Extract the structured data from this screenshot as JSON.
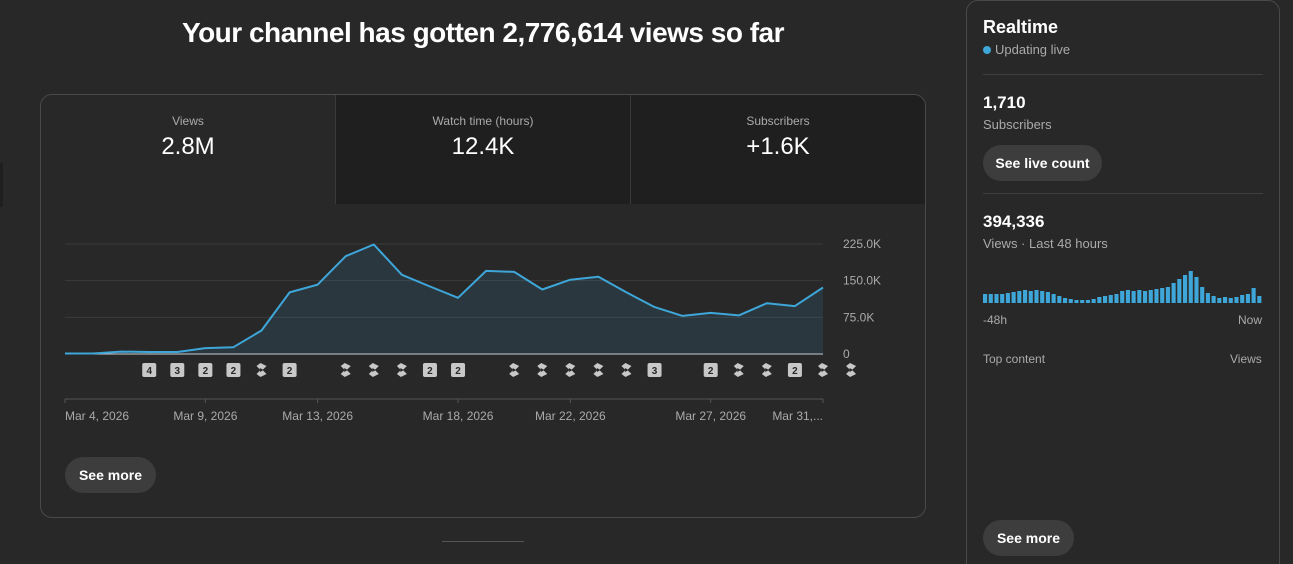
{
  "headline": "Your channel has gotten 2,776,614 views so far",
  "tabs": [
    {
      "label": "Views",
      "value": "2.8M"
    },
    {
      "label": "Watch time (hours)",
      "value": "12.4K"
    },
    {
      "label": "Subscribers",
      "value": "+1.6K"
    }
  ],
  "chart_data": {
    "type": "area",
    "series": [
      {
        "values": [
          1000,
          1000,
          5000,
          4000,
          4000,
          12000,
          14000,
          48000,
          126000,
          142000,
          200000,
          224000,
          162000,
          138000,
          115000,
          170000,
          168000,
          132000,
          152000,
          158000,
          126000,
          96000,
          78000,
          84000,
          79000,
          104000,
          98000,
          136000
        ]
      }
    ],
    "y_ticks": [
      "225.0K",
      "150.0K",
      "75.0K",
      "0"
    ],
    "ylim": [
      0,
      225000
    ],
    "x_ticks": [
      "Mar 4, 2026",
      "Mar 9, 2026",
      "Mar 13, 2026",
      "Mar 18, 2026",
      "Mar 22, 2026",
      "Mar 27, 2026",
      "Mar 31,..."
    ],
    "grid": true,
    "color": "#3ea6d8",
    "markers": [
      {
        "day": 3,
        "label": "4"
      },
      {
        "day": 4,
        "label": "3"
      },
      {
        "day": 5,
        "label": "2"
      },
      {
        "day": 6,
        "label": "2"
      },
      {
        "day": 7,
        "icon": "shorts-icon"
      },
      {
        "day": 8,
        "label": "2"
      },
      {
        "day": 10,
        "icon": "shorts-icon"
      },
      {
        "day": 11,
        "icon": "shorts-icon"
      },
      {
        "day": 12,
        "icon": "shorts-icon"
      },
      {
        "day": 13,
        "label": "2"
      },
      {
        "day": 14,
        "label": "2"
      },
      {
        "day": 16,
        "icon": "shorts-icon"
      },
      {
        "day": 17,
        "icon": "shorts-icon"
      },
      {
        "day": 18,
        "icon": "shorts-icon"
      },
      {
        "day": 19,
        "icon": "shorts-icon"
      },
      {
        "day": 20,
        "icon": "shorts-icon"
      },
      {
        "day": 21,
        "label": "3"
      },
      {
        "day": 23,
        "label": "2"
      },
      {
        "day": 24,
        "icon": "shorts-icon"
      },
      {
        "day": 25,
        "icon": "shorts-icon"
      },
      {
        "day": 26,
        "label": "2"
      },
      {
        "day": 27,
        "icon": "shorts-icon"
      },
      {
        "day": 28,
        "icon": "shorts-icon"
      }
    ]
  },
  "see_more_label": "See more",
  "realtime": {
    "title": "Realtime",
    "live_label": "Updating live",
    "subscribers_value": "1,710",
    "subscribers_label": "Subscribers",
    "live_count_button": "See live count",
    "views_value": "394,336",
    "views_label": "Views · Last 48 hours",
    "bars": [
      9,
      9,
      9,
      9,
      10,
      11,
      12,
      13,
      12,
      13,
      12,
      11,
      9,
      7,
      5,
      4,
      3,
      3,
      3,
      4,
      6,
      7,
      8,
      9,
      12,
      13,
      12,
      13,
      12,
      13,
      14,
      15,
      16,
      20,
      24,
      28,
      32,
      26,
      16,
      10,
      7,
      5,
      6,
      5,
      6,
      8,
      9,
      15,
      7
    ],
    "axis_start": "-48h",
    "axis_end": "Now",
    "top_content_label": "Top content",
    "top_content_views_label": "Views",
    "see_more_label": "See more"
  }
}
